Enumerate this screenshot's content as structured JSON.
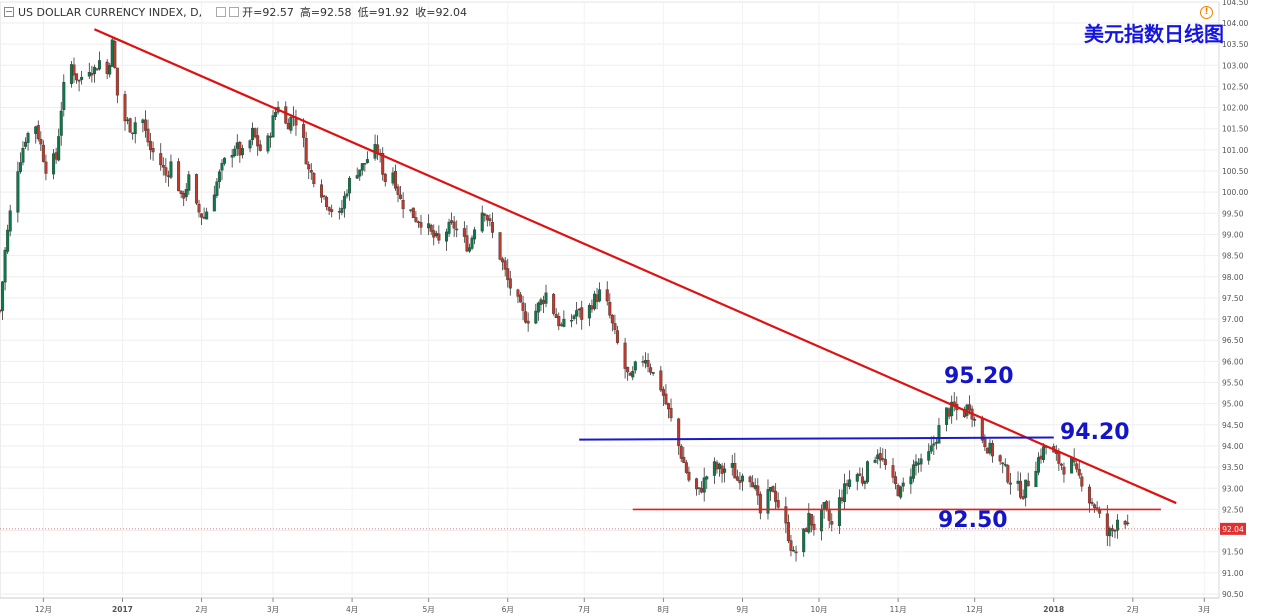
{
  "header": {
    "symbol": "US DOLLAR CURRENCY INDEX, D,",
    "open": "开=92.57",
    "high": "高=92.58",
    "low": "低=91.92",
    "close": "收=92.04"
  },
  "title_cn": "美元指数日线图",
  "current_price_label": "92.04",
  "annotations": [
    "95.20",
    "94.20",
    "92.50"
  ],
  "colors": {
    "up": "#0a7a4a",
    "down": "#c0392b",
    "trend": "#e01010",
    "resistance": "#1a1acc",
    "support": "#e02020"
  },
  "chart_data": {
    "type": "candlestick",
    "y_ticks": [
      "104.50",
      "104.00",
      "103.50",
      "103.00",
      "102.50",
      "102.00",
      "101.50",
      "101.00",
      "100.50",
      "100.00",
      "99.50",
      "99.00",
      "98.50",
      "98.00",
      "97.50",
      "97.00",
      "96.50",
      "96.00",
      "95.50",
      "95.00",
      "94.50",
      "94.00",
      "93.50",
      "93.00",
      "92.50",
      "92.00",
      "91.50",
      "91.00",
      "90.50"
    ],
    "ylim": [
      90.5,
      104.5
    ],
    "x_ticks": [
      "12月",
      "2017",
      "2月",
      "3月",
      "4月",
      "5月",
      "6月",
      "7月",
      "8月",
      "9月",
      "10月",
      "11月",
      "12月",
      "2018",
      "2月",
      "3月"
    ],
    "xlim": [
      "2016-11-14",
      "2018-03-15"
    ],
    "grid": true,
    "lines": [
      {
        "name": "downtrend",
        "points": [
          [
            "2016-12-21",
            103.85
          ],
          [
            "2018-02-18",
            92.65
          ]
        ]
      },
      {
        "name": "resistance",
        "points": [
          [
            "2017-06-29",
            94.15
          ],
          [
            "2018-01-01",
            94.2
          ]
        ]
      },
      {
        "name": "support",
        "points": [
          [
            "2017-07-20",
            92.5
          ],
          [
            "2018-02-12",
            92.5
          ]
        ]
      },
      {
        "name": "current",
        "points": [
          [
            "2016-11-14",
            92.04
          ],
          [
            "2018-03-15",
            92.04
          ]
        ]
      }
    ],
    "path": [
      [
        "2016-11-14",
        97.2
      ],
      [
        "2016-11-16",
        98.6
      ],
      [
        "2016-11-18",
        99.5
      ],
      [
        "2016-11-21",
        100.6
      ],
      [
        "2016-11-24",
        101.3
      ],
      [
        "2016-11-28",
        101.6
      ],
      [
        "2016-11-30",
        101.1
      ],
      [
        "2016-12-02",
        100.6
      ],
      [
        "2016-12-06",
        100.8
      ],
      [
        "2016-12-08",
        102.0
      ],
      [
        "2016-12-10",
        102.9
      ],
      [
        "2016-12-12",
        103.0
      ],
      [
        "2016-12-15",
        102.6
      ],
      [
        "2016-12-18",
        103.0
      ],
      [
        "2016-12-21",
        102.9
      ],
      [
        "2016-12-23",
        103.1
      ],
      [
        "2016-12-26",
        102.8
      ],
      [
        "2016-12-28",
        103.5
      ],
      [
        "2016-12-30",
        102.3
      ],
      [
        "2017-01-02",
        101.7
      ],
      [
        "2017-01-05",
        101.5
      ],
      [
        "2017-01-08",
        102.0
      ],
      [
        "2017-01-10",
        101.4
      ],
      [
        "2017-01-12",
        101.0
      ],
      [
        "2017-01-15",
        100.8
      ],
      [
        "2017-01-18",
        100.4
      ],
      [
        "2017-01-21",
        100.8
      ],
      [
        "2017-01-24",
        99.8
      ],
      [
        "2017-01-27",
        100.3
      ],
      [
        "2017-01-30",
        99.6
      ],
      [
        "2017-02-02",
        99.4
      ],
      [
        "2017-02-05",
        99.9
      ],
      [
        "2017-02-08",
        100.4
      ],
      [
        "2017-02-10",
        100.7
      ],
      [
        "2017-02-14",
        101.1
      ],
      [
        "2017-02-18",
        100.8
      ],
      [
        "2017-02-21",
        101.4
      ],
      [
        "2017-02-24",
        101.0
      ],
      [
        "2017-02-27",
        101.2
      ],
      [
        "2017-03-01",
        101.7
      ],
      [
        "2017-03-03",
        102.1
      ],
      [
        "2017-03-06",
        101.6
      ],
      [
        "2017-03-09",
        101.8
      ],
      [
        "2017-03-12",
        101.5
      ],
      [
        "2017-03-15",
        100.5
      ],
      [
        "2017-03-18",
        100.3
      ],
      [
        "2017-03-21",
        99.9
      ],
      [
        "2017-03-24",
        99.6
      ],
      [
        "2017-03-27",
        99.4
      ],
      [
        "2017-03-30",
        100.1
      ],
      [
        "2017-04-02",
        100.5
      ],
      [
        "2017-04-05",
        100.6
      ],
      [
        "2017-04-08",
        100.9
      ],
      [
        "2017-04-11",
        101.0
      ],
      [
        "2017-04-14",
        100.3
      ],
      [
        "2017-04-17",
        100.5
      ],
      [
        "2017-04-20",
        99.8
      ],
      [
        "2017-04-23",
        99.6
      ],
      [
        "2017-04-26",
        99.4
      ],
      [
        "2017-04-29",
        99.3
      ],
      [
        "2017-05-02",
        99.0
      ],
      [
        "2017-05-05",
        98.8
      ],
      [
        "2017-05-08",
        99.1
      ],
      [
        "2017-05-11",
        99.2
      ],
      [
        "2017-05-14",
        98.9
      ],
      [
        "2017-05-17",
        98.7
      ],
      [
        "2017-05-20",
        99.5
      ],
      [
        "2017-05-23",
        99.6
      ],
      [
        "2017-05-26",
        99.0
      ],
      [
        "2017-05-29",
        98.5
      ],
      [
        "2017-06-01",
        97.9
      ],
      [
        "2017-06-04",
        97.5
      ],
      [
        "2017-06-07",
        97.1
      ],
      [
        "2017-06-10",
        97.0
      ],
      [
        "2017-06-13",
        97.3
      ],
      [
        "2017-06-16",
        97.6
      ],
      [
        "2017-06-19",
        97.2
      ],
      [
        "2017-06-22",
        96.8
      ],
      [
        "2017-06-25",
        96.9
      ],
      [
        "2017-06-28",
        97.2
      ],
      [
        "2017-07-01",
        97.0
      ],
      [
        "2017-07-04",
        97.4
      ],
      [
        "2017-07-07",
        97.6
      ],
      [
        "2017-07-10",
        97.3
      ],
      [
        "2017-07-13",
        96.6
      ],
      [
        "2017-07-16",
        96.0
      ],
      [
        "2017-07-19",
        95.5
      ],
      [
        "2017-07-22",
        96.0
      ],
      [
        "2017-07-25",
        96.1
      ],
      [
        "2017-07-28",
        95.7
      ],
      [
        "2017-07-31",
        95.4
      ],
      [
        "2017-08-03",
        94.8
      ],
      [
        "2017-08-06",
        94.2
      ],
      [
        "2017-08-09",
        93.6
      ],
      [
        "2017-08-12",
        93.0
      ],
      [
        "2017-08-15",
        92.9
      ],
      [
        "2017-08-18",
        93.3
      ],
      [
        "2017-08-21",
        93.5
      ],
      [
        "2017-08-24",
        93.4
      ],
      [
        "2017-08-27",
        93.6
      ],
      [
        "2017-08-30",
        93.2
      ],
      [
        "2017-09-02",
        93.5
      ],
      [
        "2017-09-05",
        93.2
      ],
      [
        "2017-09-08",
        92.4
      ],
      [
        "2017-09-10",
        92.7
      ],
      [
        "2017-09-13",
        93.0
      ],
      [
        "2017-09-16",
        92.4
      ],
      [
        "2017-09-19",
        91.9
      ],
      [
        "2017-09-21",
        91.4
      ],
      [
        "2017-09-24",
        91.7
      ],
      [
        "2017-09-27",
        92.3
      ],
      [
        "2017-09-30",
        92.0
      ],
      [
        "2017-10-03",
        92.5
      ],
      [
        "2017-10-06",
        92.1
      ],
      [
        "2017-10-09",
        92.7
      ],
      [
        "2017-10-12",
        93.1
      ],
      [
        "2017-10-15",
        93.4
      ],
      [
        "2017-10-18",
        93.2
      ],
      [
        "2017-10-21",
        93.6
      ],
      [
        "2017-10-24",
        93.9
      ],
      [
        "2017-10-27",
        93.5
      ],
      [
        "2017-10-30",
        93.1
      ],
      [
        "2017-11-02",
        92.9
      ],
      [
        "2017-11-05",
        93.3
      ],
      [
        "2017-11-08",
        93.6
      ],
      [
        "2017-11-11",
        93.5
      ],
      [
        "2017-11-14",
        93.9
      ],
      [
        "2017-11-17",
        94.4
      ],
      [
        "2017-11-20",
        94.8
      ],
      [
        "2017-11-23",
        94.9
      ],
      [
        "2017-11-26",
        94.7
      ],
      [
        "2017-11-29",
        95.0
      ],
      [
        "2017-12-01",
        94.6
      ],
      [
        "2017-12-04",
        94.2
      ],
      [
        "2017-12-07",
        93.9
      ],
      [
        "2017-12-09",
        93.8
      ],
      [
        "2017-12-12",
        93.5
      ],
      [
        "2017-12-15",
        93.2
      ],
      [
        "2017-12-18",
        93.0
      ],
      [
        "2017-12-20",
        92.9
      ],
      [
        "2017-12-23",
        93.3
      ],
      [
        "2017-12-26",
        93.7
      ],
      [
        "2017-12-29",
        94.0
      ],
      [
        "2018-01-02",
        93.7
      ],
      [
        "2018-01-05",
        93.5
      ],
      [
        "2018-01-08",
        93.6
      ],
      [
        "2018-01-10",
        93.3
      ],
      [
        "2018-01-12",
        93.2
      ],
      [
        "2018-01-14",
        92.8
      ],
      [
        "2018-01-17",
        92.6
      ],
      [
        "2018-01-19",
        92.3
      ],
      [
        "2018-01-20",
        92.2
      ],
      [
        "2018-01-22",
        91.9
      ],
      [
        "2018-01-24",
        92.0
      ],
      [
        "2018-01-26",
        92.3
      ],
      [
        "2018-01-28",
        92.5
      ],
      [
        "2018-01-30",
        92.04
      ]
    ]
  }
}
